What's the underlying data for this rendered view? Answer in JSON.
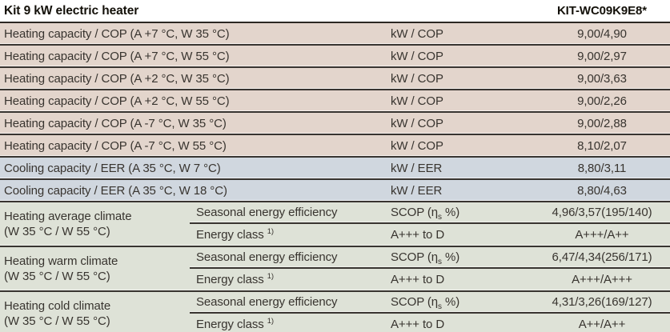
{
  "header": {
    "title": "Kit 9 kW electric heater",
    "model": "KIT-WC09K9E8*"
  },
  "colors": {
    "heating_row_bg": "#e3d5cc",
    "cooling_row_bg": "#d0d7df",
    "seasonal_row_bg": "#dee2d7",
    "separator_line": "#383430",
    "header_bg": "#ffffff",
    "text": "#38342f"
  },
  "spec_rows": [
    {
      "label": "Heating capacity / COP (A +7 °C, W 35 °C)",
      "unit": "kW / COP",
      "value": "9,00/4,90"
    },
    {
      "label": "Heating capacity / COP (A +7 °C, W 55 °C)",
      "unit": "kW / COP",
      "value": "9,00/2,97"
    },
    {
      "label": "Heating capacity / COP (A +2 °C, W 35 °C)",
      "unit": "kW / COP",
      "value": "9,00/3,63"
    },
    {
      "label": "Heating capacity / COP (A +2 °C, W 55 °C)",
      "unit": "kW / COP",
      "value": "9,00/2,26"
    },
    {
      "label": "Heating capacity / COP (A -7 °C, W 35 °C)",
      "unit": "kW / COP",
      "value": "9,00/2,88"
    },
    {
      "label": "Heating capacity / COP (A -7 °C, W 55 °C)",
      "unit": "kW / COP",
      "value": "8,10/2,07"
    },
    {
      "label": "Cooling capacity / EER (A 35 °C, W 7 °C)",
      "unit": "kW / EER",
      "value": "8,80/3,11"
    },
    {
      "label": "Cooling capacity / EER (A 35 °C, W 18 °C)",
      "unit": "kW / EER",
      "value": "8,80/4,63"
    }
  ],
  "seasonal": {
    "groups": [
      {
        "climate": "Heating average climate",
        "conditions": "(W 35 °C / W 55 °C)",
        "rows": [
          {
            "label": "Seasonal energy efficiency",
            "label_sup": "",
            "unit_pre": "SCOP (η",
            "unit_sub": "s",
            "unit_post": " %)",
            "value": "4,96/3,57(195/140)"
          },
          {
            "label": "Energy class ",
            "label_sup": "1)",
            "unit_pre": "A+++ to D",
            "unit_sub": "",
            "unit_post": "",
            "value": "A+++/A++"
          }
        ]
      },
      {
        "climate": "Heating warm climate",
        "conditions": "(W 35 °C / W 55 °C)",
        "rows": [
          {
            "label": "Seasonal energy efficiency",
            "label_sup": "",
            "unit_pre": "SCOP (η",
            "unit_sub": "s",
            "unit_post": " %)",
            "value": "6,47/4,34(256/171)"
          },
          {
            "label": "Energy class ",
            "label_sup": "1)",
            "unit_pre": "A+++ to D",
            "unit_sub": "",
            "unit_post": "",
            "value": "A+++/A+++"
          }
        ]
      },
      {
        "climate": "Heating cold climate",
        "conditions": "(W 35 °C / W 55 °C)",
        "rows": [
          {
            "label": "Seasonal energy efficiency",
            "label_sup": "",
            "unit_pre": "SCOP (η",
            "unit_sub": "s",
            "unit_post": " %)",
            "value": "4,31/3,26(169/127)"
          },
          {
            "label": "Energy class ",
            "label_sup": "1)",
            "unit_pre": "A+++ to D",
            "unit_sub": "",
            "unit_post": "",
            "value": "A++/A++"
          }
        ]
      }
    ]
  }
}
